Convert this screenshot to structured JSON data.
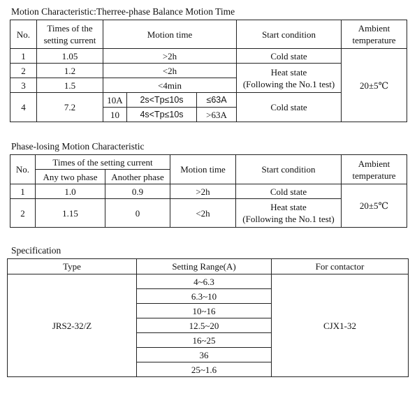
{
  "motion": {
    "caption": "Motion Characteristic:Therree-phase Balance Motion Time",
    "headers": {
      "no": "No.",
      "times_line1": "Times of the",
      "times_line2": "setting current",
      "motion_time": "Motion time",
      "start_condition": "Start condition",
      "ambient_line1": "Ambient",
      "ambient_line2": "temperature"
    },
    "rows": [
      {
        "no": "1",
        "times": "1.05",
        "motion_time": ">2h",
        "start": "Cold state"
      },
      {
        "no": "2",
        "times": "1.2",
        "motion_time": "<2h"
      },
      {
        "no": "3",
        "times": "1.5",
        "motion_time": "<4min"
      },
      {
        "no": "4",
        "times": "7.2",
        "sub1": {
          "a": "10A",
          "tp": "2s<Tp≤10s",
          "limit": "≤63A"
        },
        "sub2": {
          "a": "10",
          "tp": "4s<Tp≤10s",
          "limit": ">63A"
        },
        "start": "Cold state"
      }
    ],
    "heat_state": "Heat state",
    "following": "(Following the No.1 test)",
    "ambient_value": "20±5℃"
  },
  "phase_losing": {
    "caption": "Phase-losing Motion Characteristic",
    "headers": {
      "no": "No.",
      "times": "Times of the setting current",
      "any_two": "Any two phase",
      "another": "Another phase",
      "motion_time": "Motion time",
      "start_condition": "Start condition",
      "ambient_line1": "Ambient",
      "ambient_line2": "temperature"
    },
    "rows": [
      {
        "no": "1",
        "any_two": "1.0",
        "another": "0.9",
        "motion_time": ">2h",
        "start": "Cold state"
      },
      {
        "no": "2",
        "any_two": "1.15",
        "another": "0",
        "motion_time": "<2h",
        "start_line1": "Heat state",
        "start_line2": "(Following the No.1 test)"
      }
    ],
    "ambient_value": "20±5℃"
  },
  "specification": {
    "caption": "Specification",
    "headers": {
      "type": "Type",
      "range": "Setting Range(A)",
      "contactor": "For contactor"
    },
    "type": "JRS2-32/Z",
    "contactor": "CJX1-32",
    "ranges": [
      "4~6.3",
      "6.3~10",
      "10~16",
      "12.5~20",
      "16~25",
      "36",
      "25~1.6"
    ]
  }
}
